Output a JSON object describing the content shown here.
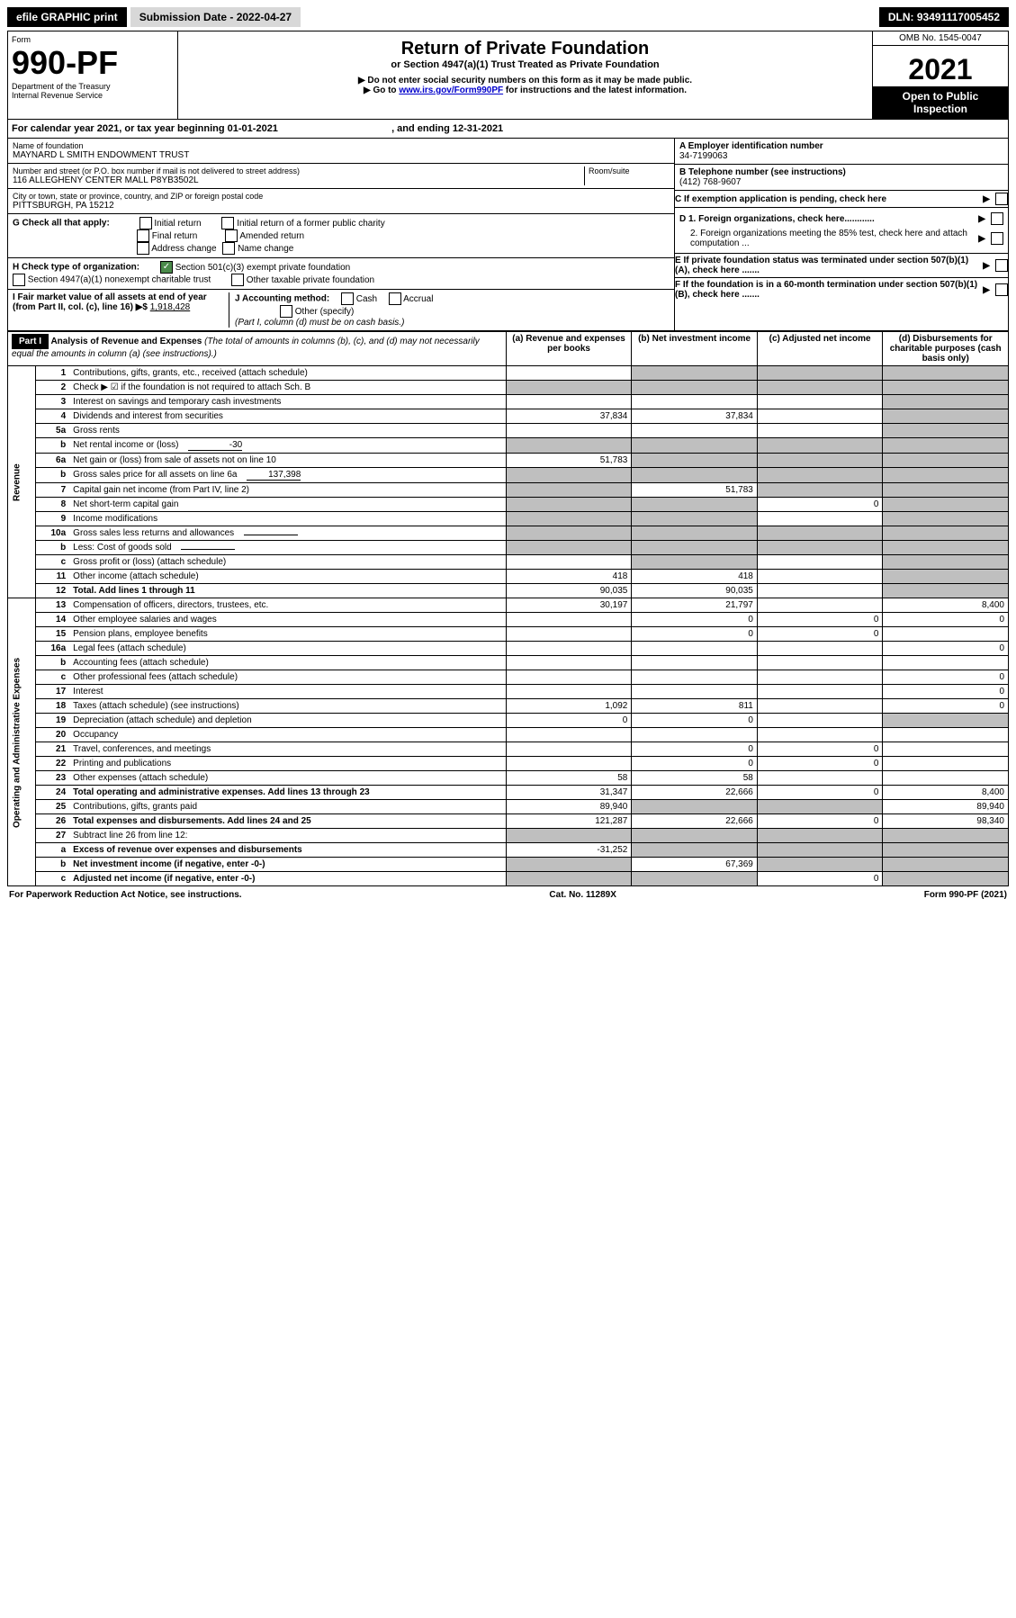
{
  "topbar": {
    "efile": "efile GRAPHIC print",
    "submission": "Submission Date - 2022-04-27",
    "dln": "DLN: 93491117005452"
  },
  "header": {
    "form_label": "Form",
    "form_number": "990-PF",
    "dept": "Department of the Treasury",
    "irs": "Internal Revenue Service",
    "title": "Return of Private Foundation",
    "subtitle": "or Section 4947(a)(1) Trust Treated as Private Foundation",
    "note1": "▶ Do not enter social security numbers on this form as it may be made public.",
    "note2_prefix": "▶ Go to ",
    "note2_link": "www.irs.gov/Form990PF",
    "note2_suffix": " for instructions and the latest information.",
    "omb": "OMB No. 1545-0047",
    "year": "2021",
    "open": "Open to Public Inspection"
  },
  "calendar": {
    "text1": "For calendar year 2021, or tax year beginning ",
    "begin": "01-01-2021",
    "text2": ", and ending ",
    "end": "12-31-2021"
  },
  "entity": {
    "name_label": "Name of foundation",
    "name": "MAYNARD L SMITH ENDOWMENT TRUST",
    "addr_label": "Number and street (or P.O. box number if mail is not delivered to street address)",
    "addr": "116 ALLEGHENY CENTER MALL P8YB3502L",
    "room_label": "Room/suite",
    "city_label": "City or town, state or province, country, and ZIP or foreign postal code",
    "city": "PITTSBURGH, PA  15212",
    "ein_label": "A Employer identification number",
    "ein": "34-7199063",
    "phone_label": "B Telephone number (see instructions)",
    "phone": "(412) 768-9607",
    "c_label": "C If exemption application is pending, check here",
    "d1": "D 1. Foreign organizations, check here............",
    "d2": "2. Foreign organizations meeting the 85% test, check here and attach computation ...",
    "e": "E  If private foundation status was terminated under section 507(b)(1)(A), check here .......",
    "f": "F  If the foundation is in a 60-month termination under section 507(b)(1)(B), check here .......",
    "g_label": "G Check all that apply:",
    "g_opts": [
      "Initial return",
      "Initial return of a former public charity",
      "Final return",
      "Amended return",
      "Address change",
      "Name change"
    ],
    "h_label": "H Check type of organization:",
    "h_opt1": "Section 501(c)(3) exempt private foundation",
    "h_opt2": "Section 4947(a)(1) nonexempt charitable trust",
    "h_opt3": "Other taxable private foundation",
    "i_label": "I Fair market value of all assets at end of year (from Part II, col. (c), line 16) ▶$ ",
    "i_value": "1,918,428",
    "j_label": "J Accounting method:",
    "j_opts": [
      "Cash",
      "Accrual"
    ],
    "j_other": "Other (specify)",
    "j_note": "(Part I, column (d) must be on cash basis.)"
  },
  "part1": {
    "label": "Part I",
    "title": "Analysis of Revenue and Expenses",
    "title_note": " (The total of amounts in columns (b), (c), and (d) may not necessarily equal the amounts in column (a) (see instructions).)",
    "col_a": "(a) Revenue and expenses per books",
    "col_b": "(b) Net investment income",
    "col_c": "(c) Adjusted net income",
    "col_d": "(d) Disbursements for charitable purposes (cash basis only)"
  },
  "sections": {
    "revenue": "Revenue",
    "expenses": "Operating and Administrative Expenses"
  },
  "rows": [
    {
      "n": "1",
      "desc": "Contributions, gifts, grants, etc., received (attach schedule)",
      "a": "",
      "b_shade": true,
      "c_shade": true,
      "d_shade": true
    },
    {
      "n": "2",
      "desc": "Check ▶ ☑ if the foundation is not required to attach Sch. B",
      "a_shade": true,
      "b_shade": true,
      "c_shade": true,
      "d_shade": true,
      "dots": true
    },
    {
      "n": "3",
      "desc": "Interest on savings and temporary cash investments",
      "a": "",
      "b": "",
      "c": "",
      "d_shade": true
    },
    {
      "n": "4",
      "desc": "Dividends and interest from securities",
      "a": "37,834",
      "b": "37,834",
      "c": "",
      "d_shade": true,
      "dots": true
    },
    {
      "n": "5a",
      "desc": "Gross rents",
      "a": "",
      "b": "",
      "c": "",
      "d_shade": true,
      "dots": true
    },
    {
      "n": "b",
      "desc": "Net rental income or (loss)",
      "inline": "-30",
      "a_shade": true,
      "b_shade": true,
      "c_shade": true,
      "d_shade": true
    },
    {
      "n": "6a",
      "desc": "Net gain or (loss) from sale of assets not on line 10",
      "a": "51,783",
      "b_shade": true,
      "c_shade": true,
      "d_shade": true
    },
    {
      "n": "b",
      "desc": "Gross sales price for all assets on line 6a",
      "inline": "137,398",
      "a_shade": true,
      "b_shade": true,
      "c_shade": true,
      "d_shade": true
    },
    {
      "n": "7",
      "desc": "Capital gain net income (from Part IV, line 2)",
      "a_shade": true,
      "b": "51,783",
      "c_shade": true,
      "d_shade": true,
      "dots": true
    },
    {
      "n": "8",
      "desc": "Net short-term capital gain",
      "a_shade": true,
      "b_shade": true,
      "c": "0",
      "d_shade": true,
      "dots": true
    },
    {
      "n": "9",
      "desc": "Income modifications",
      "a_shade": true,
      "b_shade": true,
      "c": "",
      "d_shade": true,
      "dots": true
    },
    {
      "n": "10a",
      "desc": "Gross sales less returns and allowances",
      "inline": "",
      "a_shade": true,
      "b_shade": true,
      "c_shade": true,
      "d_shade": true
    },
    {
      "n": "b",
      "desc": "Less: Cost of goods sold",
      "inline": "",
      "a_shade": true,
      "b_shade": true,
      "c_shade": true,
      "d_shade": true,
      "dots": true
    },
    {
      "n": "c",
      "desc": "Gross profit or (loss) (attach schedule)",
      "a": "",
      "b_shade": true,
      "c": "",
      "d_shade": true,
      "dots": true
    },
    {
      "n": "11",
      "desc": "Other income (attach schedule)",
      "a": "418",
      "b": "418",
      "c": "",
      "d_shade": true,
      "dots": true
    },
    {
      "n": "12",
      "desc": "Total. Add lines 1 through 11",
      "a": "90,035",
      "b": "90,035",
      "c": "",
      "d_shade": true,
      "bold": true,
      "dots": true
    },
    {
      "n": "13",
      "desc": "Compensation of officers, directors, trustees, etc.",
      "a": "30,197",
      "b": "21,797",
      "c": "",
      "d": "8,400",
      "sec": "exp"
    },
    {
      "n": "14",
      "desc": "Other employee salaries and wages",
      "a": "",
      "b": "0",
      "c": "0",
      "d": "0",
      "sec": "exp",
      "dots": true
    },
    {
      "n": "15",
      "desc": "Pension plans, employee benefits",
      "a": "",
      "b": "0",
      "c": "0",
      "d": "",
      "sec": "exp",
      "dots": true
    },
    {
      "n": "16a",
      "desc": "Legal fees (attach schedule)",
      "a": "",
      "b": "",
      "c": "",
      "d": "0",
      "sec": "exp",
      "dots": true
    },
    {
      "n": "b",
      "desc": "Accounting fees (attach schedule)",
      "a": "",
      "b": "",
      "c": "",
      "d": "",
      "sec": "exp",
      "dots": true
    },
    {
      "n": "c",
      "desc": "Other professional fees (attach schedule)",
      "a": "",
      "b": "",
      "c": "",
      "d": "0",
      "sec": "exp",
      "dots": true
    },
    {
      "n": "17",
      "desc": "Interest",
      "a": "",
      "b": "",
      "c": "",
      "d": "0",
      "sec": "exp",
      "dots": true
    },
    {
      "n": "18",
      "desc": "Taxes (attach schedule) (see instructions)",
      "a": "1,092",
      "b": "811",
      "c": "",
      "d": "0",
      "sec": "exp",
      "dots": true
    },
    {
      "n": "19",
      "desc": "Depreciation (attach schedule) and depletion",
      "a": "0",
      "b": "0",
      "c": "",
      "d_shade": true,
      "sec": "exp",
      "dots": true
    },
    {
      "n": "20",
      "desc": "Occupancy",
      "a": "",
      "b": "",
      "c": "",
      "d": "",
      "sec": "exp",
      "dots": true
    },
    {
      "n": "21",
      "desc": "Travel, conferences, and meetings",
      "a": "",
      "b": "0",
      "c": "0",
      "d": "",
      "sec": "exp",
      "dots": true
    },
    {
      "n": "22",
      "desc": "Printing and publications",
      "a": "",
      "b": "0",
      "c": "0",
      "d": "",
      "sec": "exp",
      "dots": true
    },
    {
      "n": "23",
      "desc": "Other expenses (attach schedule)",
      "a": "58",
      "b": "58",
      "c": "",
      "d": "",
      "sec": "exp",
      "dots": true
    },
    {
      "n": "24",
      "desc": "Total operating and administrative expenses. Add lines 13 through 23",
      "a": "31,347",
      "b": "22,666",
      "c": "0",
      "d": "8,400",
      "sec": "exp",
      "bold": true,
      "dots": true
    },
    {
      "n": "25",
      "desc": "Contributions, gifts, grants paid",
      "a": "89,940",
      "b_shade": true,
      "c_shade": true,
      "d": "89,940",
      "sec": "exp",
      "dots": true
    },
    {
      "n": "26",
      "desc": "Total expenses and disbursements. Add lines 24 and 25",
      "a": "121,287",
      "b": "22,666",
      "c": "0",
      "d": "98,340",
      "sec": "exp",
      "bold": true
    },
    {
      "n": "27",
      "desc": "Subtract line 26 from line 12:",
      "a_shade": true,
      "b_shade": true,
      "c_shade": true,
      "d_shade": true,
      "sec": "exp"
    },
    {
      "n": "a",
      "desc": "Excess of revenue over expenses and disbursements",
      "a": "-31,252",
      "b_shade": true,
      "c_shade": true,
      "d_shade": true,
      "sec": "exp",
      "bold": true
    },
    {
      "n": "b",
      "desc": "Net investment income (if negative, enter -0-)",
      "a_shade": true,
      "b": "67,369",
      "c_shade": true,
      "d_shade": true,
      "sec": "exp",
      "bold": true
    },
    {
      "n": "c",
      "desc": "Adjusted net income (if negative, enter -0-)",
      "a_shade": true,
      "b_shade": true,
      "c": "0",
      "d_shade": true,
      "sec": "exp",
      "bold": true,
      "dots": true
    }
  ],
  "footer": {
    "left": "For Paperwork Reduction Act Notice, see instructions.",
    "center": "Cat. No. 11289X",
    "right": "Form 990-PF (2021)"
  }
}
